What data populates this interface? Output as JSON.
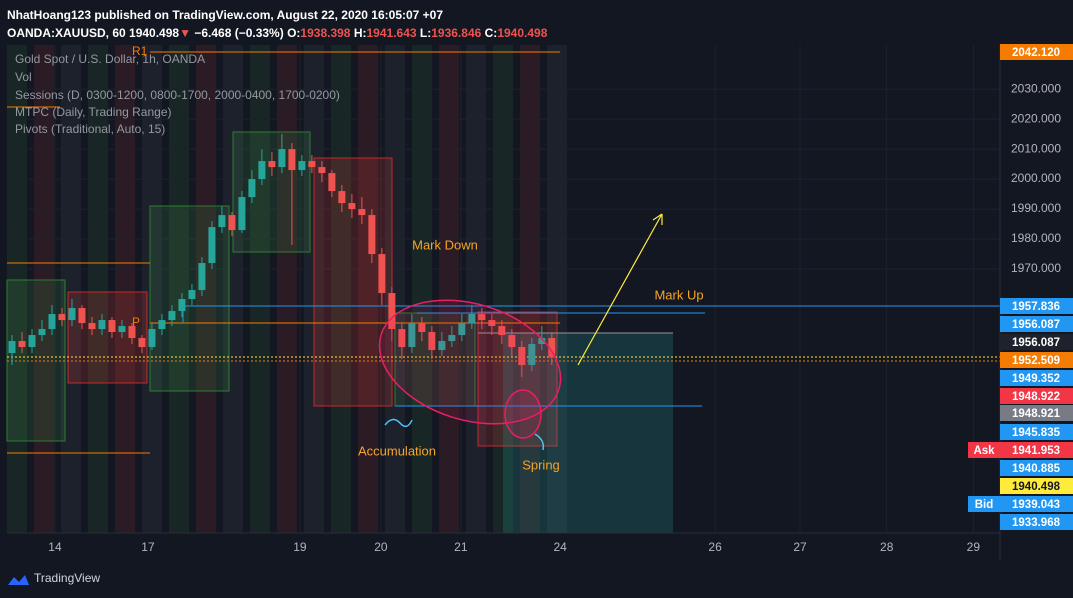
{
  "header": {
    "published": "NhatHoang123 published on TradingView.com, August 22, 2020 16:05:07 +07",
    "symbol": "OANDA:XAUUSD, 60",
    "last": "1940.498",
    "arrow": "▼",
    "change": "−6.468 (−0.33%)",
    "o_label": "O:",
    "o": "1938.398",
    "h_label": "H:",
    "h": "1941.643",
    "l_label": "L:",
    "l": "1936.846",
    "c_label": "C:",
    "c": "1940.498"
  },
  "legend": [
    "Gold Spot / U.S. Dollar, 1h, OANDA",
    "Vol",
    "Sessions (D, 0300-1200, 0800-1700, 2000-0400, 1700-0200)",
    "MTPC (Daily, Trading Range)",
    "Pivots (Traditional, Auto, 15)"
  ],
  "annotations": {
    "r1": "R1",
    "p": "P",
    "mark_down": "Mark Down",
    "mark_up": "Mark Up",
    "accumulation": "Accumulation",
    "spring": "Spring"
  },
  "price_tags": [
    {
      "label": "2042.120",
      "color": "#f57c00"
    },
    {
      "label": "1957.836",
      "color": "#2196f3"
    },
    {
      "label": "1956.087",
      "color": "#2196f3"
    },
    {
      "label": "1956.087",
      "color": "#1e222d"
    },
    {
      "label": "1952.509",
      "color": "#f57c00"
    },
    {
      "label": "1949.352",
      "color": "#2196f3"
    },
    {
      "label": "1948.922",
      "color": "#f23645"
    },
    {
      "label": "1948.921",
      "color": "#787b86"
    },
    {
      "label": "1945.835",
      "color": "#2196f3"
    },
    {
      "label": "1941.953",
      "color": "#f23645",
      "side": "Ask"
    },
    {
      "label": "1940.885",
      "color": "#2196f3"
    },
    {
      "label": "1940.498",
      "color": "#ffeb3b"
    },
    {
      "label": "1939.043",
      "color": "#2196f3",
      "side": "Bid"
    },
    {
      "label": "1933.968",
      "color": "#2196f3"
    }
  ],
  "footer": {
    "brand": "TradingView"
  },
  "chart_data": {
    "type": "candlestick",
    "grid": true,
    "up_color": "#26a69a",
    "down_color": "#ef5350",
    "xlim": [
      0,
      298
    ],
    "ylim": [
      1882,
      2044.7
    ],
    "xticks": [
      {
        "value": 14.4,
        "label": "14"
      },
      {
        "value": 42.3,
        "label": "17"
      },
      {
        "value": 87.9,
        "label": "19"
      },
      {
        "value": 112.2,
        "label": "20"
      },
      {
        "value": 136.2,
        "label": "21"
      },
      {
        "value": 166,
        "label": "24"
      },
      {
        "value": 212.5,
        "label": "26"
      },
      {
        "value": 238,
        "label": "27"
      },
      {
        "value": 264,
        "label": "28"
      },
      {
        "value": 290,
        "label": "29"
      }
    ],
    "yticks": [
      {
        "value": 1970,
        "label": "1970.000"
      },
      {
        "value": 1980,
        "label": "1980.000"
      },
      {
        "value": 1990,
        "label": "1990.000"
      },
      {
        "value": 2000,
        "label": "2000.000"
      },
      {
        "value": 2010,
        "label": "2010.000"
      },
      {
        "value": 2020,
        "label": "2020.000"
      },
      {
        "value": 2030,
        "label": "2030.000"
      }
    ],
    "x": [
      1.5,
      4.5,
      7.5,
      10.5,
      13.5,
      16.5,
      19.5,
      22.5,
      25.5,
      28.5,
      31.5,
      34.5,
      37.5,
      40.5,
      43.5,
      46.5,
      49.5,
      52.5,
      55.5,
      58.5,
      61.5,
      64.5,
      67.5,
      70.5,
      73.5,
      76.5,
      79.5,
      82.5,
      85.5,
      88.5,
      91.5,
      94.5,
      97.5,
      100.5,
      103.5,
      106.5,
      109.5,
      112.5,
      115.5,
      118.5,
      121.5,
      124.5,
      127.5,
      130.5,
      133.5,
      136.5,
      139.5,
      142.5,
      145.5,
      148.5,
      151.5,
      154.5,
      157.5,
      160.5,
      163.5
    ],
    "open": [
      1942,
      1946,
      1944,
      1948,
      1950,
      1955,
      1953,
      1957,
      1952,
      1950,
      1953,
      1949,
      1951,
      1947,
      1944,
      1950,
      1953,
      1956,
      1960,
      1963,
      1972,
      1984,
      1988,
      1983,
      1994,
      2000,
      2006,
      2004,
      2010,
      2003,
      2006,
      2004,
      2002,
      1996,
      1992,
      1990,
      1988,
      1975,
      1962,
      1950,
      1944,
      1952,
      1949,
      1943,
      1946,
      1948,
      1952,
      1955,
      1953,
      1951,
      1948,
      1944,
      1938,
      1945,
      1947
    ],
    "high": [
      1948,
      1949,
      1950,
      1953,
      1958,
      1957,
      1960,
      1958,
      1954,
      1955,
      1954,
      1953,
      1952,
      1948,
      1952,
      1955,
      1958,
      1962,
      1965,
      1974,
      1986,
      1991,
      1989,
      1996,
      2003,
      2010,
      2009,
      2015,
      2012,
      2008,
      2008,
      2006,
      2003,
      1998,
      1995,
      1994,
      1990,
      1977,
      1964,
      1952,
      1955,
      1954,
      1951,
      1949,
      1951,
      1955,
      1958,
      1957,
      1955,
      1953,
      1950,
      1946,
      1947,
      1951,
      1949
    ],
    "low": [
      1938,
      1942,
      1942,
      1946,
      1948,
      1951,
      1951,
      1950,
      1948,
      1948,
      1947,
      1947,
      1945,
      1942,
      1943,
      1948,
      1951,
      1954,
      1958,
      1961,
      1970,
      1982,
      1981,
      1982,
      1992,
      1998,
      2001,
      2002,
      1978,
      2001,
      2002,
      1999,
      1994,
      1989,
      1987,
      1985,
      1972,
      1958,
      1946,
      1940,
      1942,
      1946,
      1940,
      1941,
      1944,
      1946,
      1950,
      1950,
      1948,
      1945,
      1941,
      1934,
      1936,
      1943,
      1938
    ],
    "close": [
      1946,
      1944,
      1948,
      1950,
      1955,
      1953,
      1957,
      1952,
      1950,
      1953,
      1949,
      1951,
      1947,
      1944,
      1950,
      1953,
      1956,
      1960,
      1963,
      1972,
      1984,
      1988,
      1983,
      1994,
      2000,
      2006,
      2004,
      2010,
      2003,
      2006,
      2004,
      2002,
      1996,
      1992,
      1990,
      1988,
      1975,
      1962,
      1950,
      1944,
      1952,
      1949,
      1943,
      1946,
      1948,
      1952,
      1955,
      1953,
      1951,
      1948,
      1944,
      1938,
      1945,
      1947,
      1940.498
    ]
  }
}
